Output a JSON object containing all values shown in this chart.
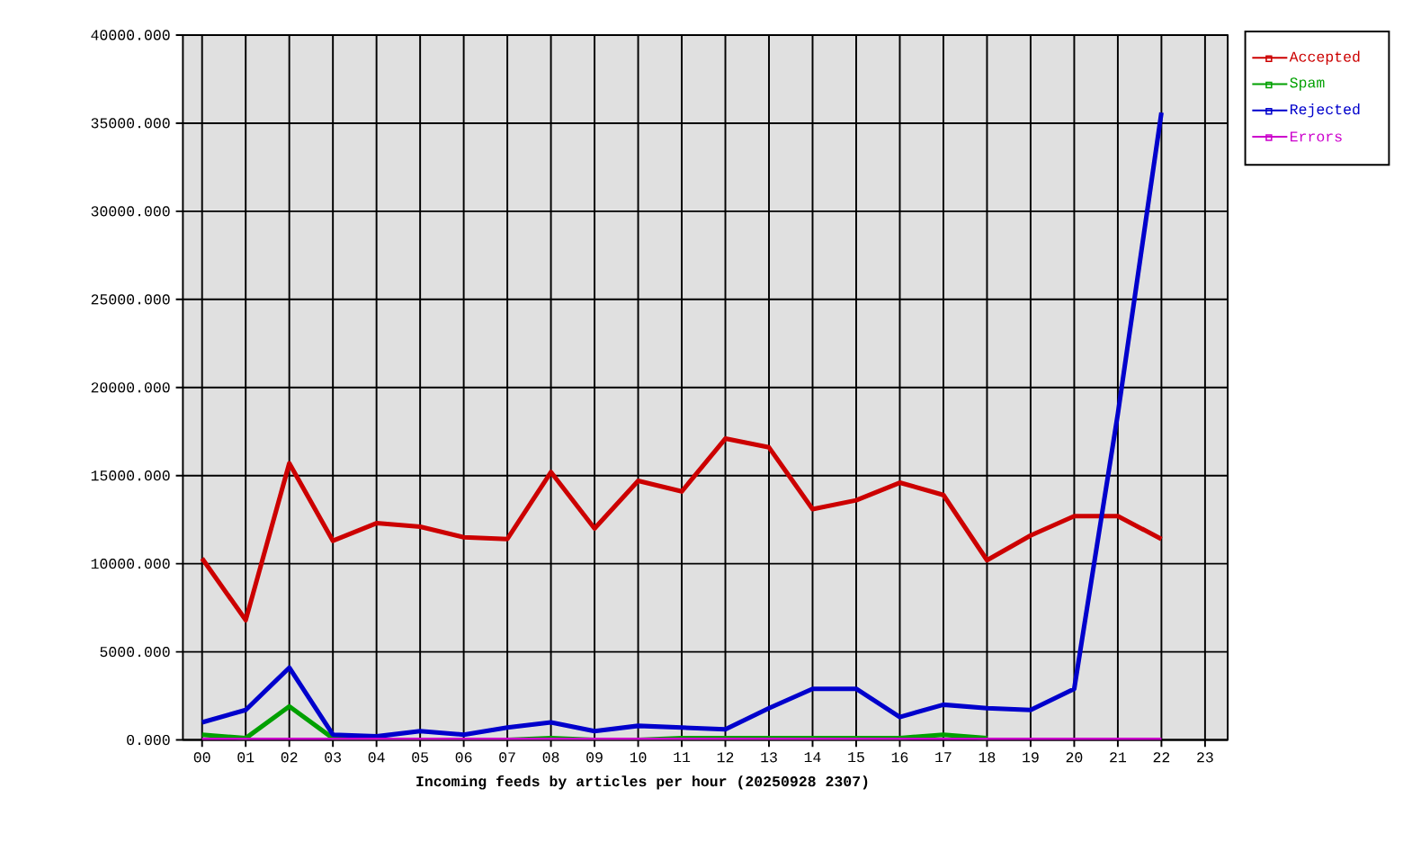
{
  "chart_data": {
    "type": "line",
    "xlabel": "**Incoming feeds by articles per hour (20250928 2307)**",
    "categories": [
      "00",
      "01",
      "02",
      "03",
      "04",
      "05",
      "06",
      "07",
      "08",
      "09",
      "10",
      "11",
      "12",
      "13",
      "14",
      "15",
      "16",
      "17",
      "18",
      "19",
      "20",
      "21",
      "22",
      "23"
    ],
    "series": [
      {
        "name": "Accepted",
        "color": "#cc0000",
        "values": [
          10300,
          6800,
          15700,
          11300,
          12300,
          12100,
          11500,
          11400,
          15200,
          12000,
          14700,
          14100,
          17100,
          16600,
          13100,
          13600,
          14600,
          13900,
          10200,
          11600,
          12700,
          12700,
          11400,
          null
        ]
      },
      {
        "name": "Spam",
        "color": "#00a000",
        "values": [
          300,
          100,
          1900,
          100,
          0,
          0,
          0,
          0,
          100,
          0,
          0,
          100,
          100,
          100,
          100,
          100,
          100,
          300,
          100,
          null,
          null,
          null,
          null,
          null
        ]
      },
      {
        "name": "Rejected",
        "color": "#0000cc",
        "values": [
          1000,
          1700,
          4100,
          300,
          200,
          500,
          300,
          700,
          1000,
          500,
          800,
          700,
          600,
          1800,
          2900,
          2900,
          1300,
          2000,
          1800,
          1700,
          2900,
          18500,
          35600,
          null
        ]
      },
      {
        "name": "Errors",
        "color": "#cc00cc",
        "values": [
          0,
          0,
          0,
          0,
          0,
          0,
          0,
          0,
          0,
          0,
          0,
          0,
          0,
          0,
          0,
          0,
          0,
          0,
          0,
          0,
          0,
          0,
          0,
          null
        ]
      }
    ],
    "ylim": [
      0,
      40000
    ],
    "yticks": [
      {
        "value": 0,
        "label": "0.000"
      },
      {
        "value": 5000,
        "label": "5000.000"
      },
      {
        "value": 10000,
        "label": "10000.000"
      },
      {
        "value": 15000,
        "label": "15000.000"
      },
      {
        "value": 20000,
        "label": "20000.000"
      },
      {
        "value": 25000,
        "label": "25000.000"
      },
      {
        "value": 30000,
        "label": "30000.000"
      },
      {
        "value": 35000,
        "label": "35000.000"
      },
      {
        "value": 40000,
        "label": "40000.000"
      }
    ],
    "grid": true,
    "legend": "top right",
    "marker": "none",
    "line_style": "solid"
  }
}
